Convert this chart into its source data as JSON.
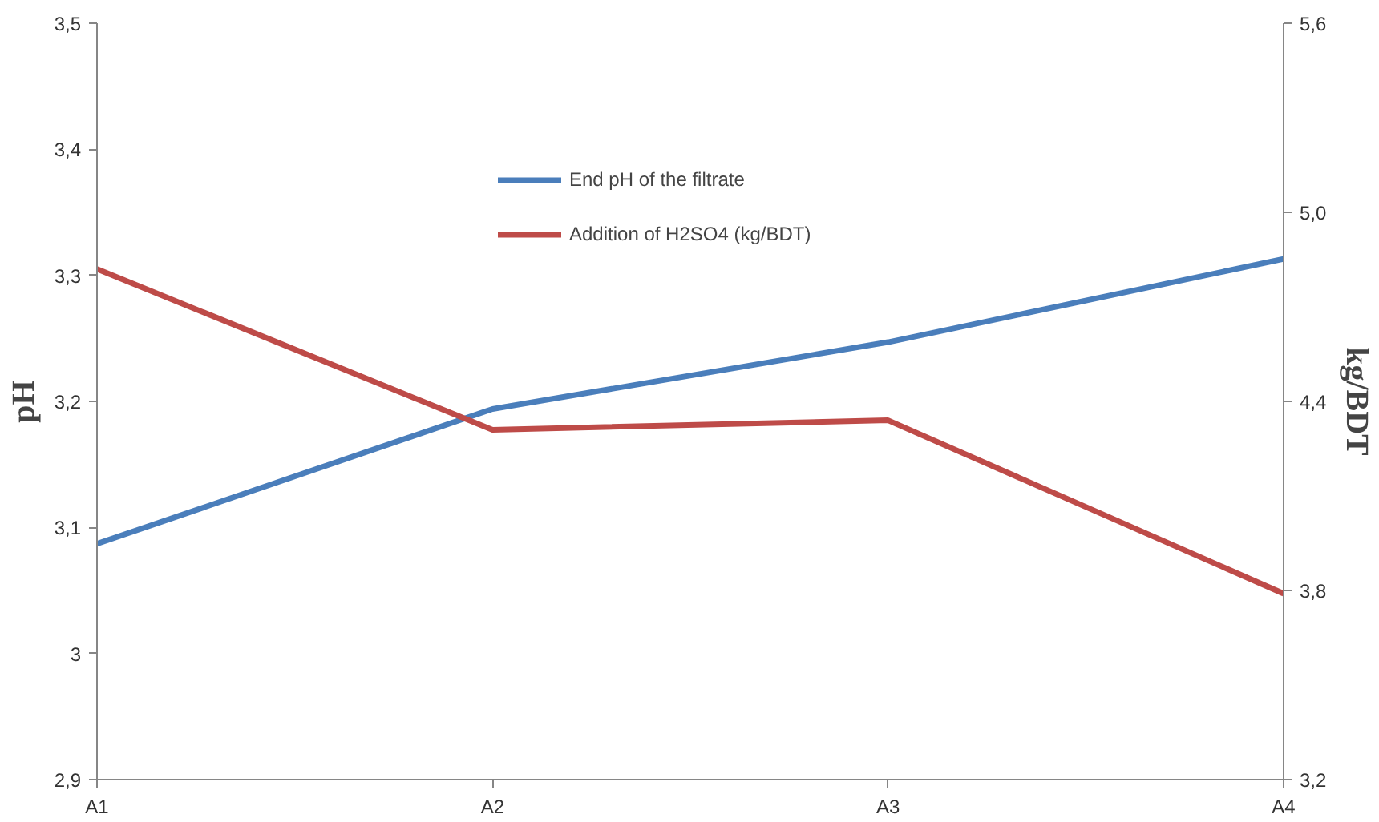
{
  "chart_data": {
    "type": "line",
    "categories": [
      "A1",
      "A2",
      "A3",
      "A4"
    ],
    "ylabel": "pH",
    "y2label": "kg/BDT",
    "series": [
      {
        "name": "End pH of the filtrate",
        "color": "#4a7ebb",
        "values": [
          3.087,
          3.194,
          3.247,
          3.313
        ]
      },
      {
        "name": "Addition of H2SO4 (kg/BDT)",
        "color": "#be4b48",
        "values": [
          4.82,
          4.31,
          4.34,
          3.79
        ],
        "axis": "y2"
      }
    ],
    "ylim": [
      2.9,
      3.5
    ],
    "yticks": [
      {
        "value": 2.9,
        "label": "2,9"
      },
      3,
      {
        "value": 3.1,
        "label": "3,1"
      },
      {
        "value": 3.2,
        "label": "3,2"
      },
      {
        "value": 3.3,
        "label": "3,3"
      },
      {
        "value": 3.4,
        "label": "3,4"
      },
      {
        "value": 3.5,
        "label": "3,5"
      }
    ],
    "y2lim": [
      3.2,
      5.6
    ],
    "y2ticks": [
      {
        "value": 3.2,
        "label": "3,2"
      },
      {
        "value": 3.8,
        "label": "3,8"
      },
      {
        "value": 4.4,
        "label": "4,4"
      },
      {
        "value": 5.0,
        "label": "5,0"
      },
      {
        "value": 5.6,
        "label": "5,6"
      }
    ],
    "grid": false,
    "legend": "top",
    "marker": "none",
    "line_style": "solid"
  }
}
